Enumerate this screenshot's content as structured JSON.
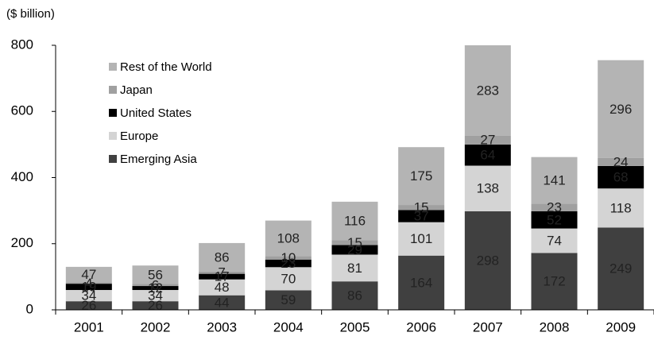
{
  "chart_data": {
    "type": "stacked_bar",
    "y_axis_label": "($ billion)",
    "categories": [
      "2001",
      "2002",
      "2003",
      "2004",
      "2005",
      "2006",
      "2007",
      "2008",
      "2009"
    ],
    "series": [
      {
        "name": "Emerging Asia",
        "color": "#404040",
        "values": [
          26,
          26,
          44,
          59,
          86,
          164,
          298,
          172,
          249
        ]
      },
      {
        "name": "Europe",
        "color": "#d4d4d4",
        "values": [
          34,
          34,
          48,
          70,
          81,
          101,
          138,
          74,
          118
        ]
      },
      {
        "name": "United States",
        "color": "#000000",
        "values": [
          19,
          12,
          17,
          23,
          29,
          37,
          64,
          52,
          68
        ]
      },
      {
        "name": "Japan",
        "color": "#a0a0a0",
        "values": [
          4,
          6,
          7,
          10,
          15,
          15,
          27,
          23,
          24
        ]
      },
      {
        "name": "Rest of the World",
        "color": "#b4b4b4",
        "values": [
          47,
          56,
          86,
          108,
          116,
          175,
          283,
          141,
          296
        ]
      }
    ],
    "ylim": [
      0,
      800
    ],
    "yticks": [
      0,
      200,
      400,
      600,
      800
    ],
    "legend": "upper left"
  }
}
